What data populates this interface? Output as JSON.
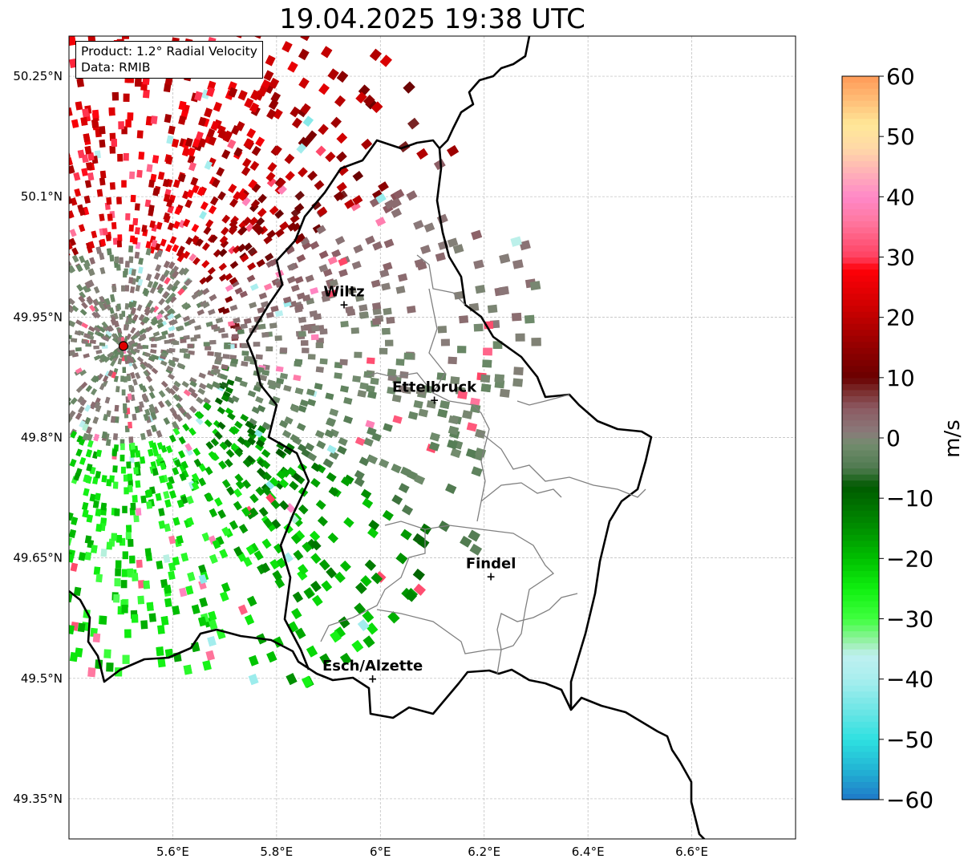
{
  "title": "19.04.2025 19:38 UTC",
  "info": {
    "product": "Product: 1.2° Radial Velocity",
    "data_source": "Data: RMIB"
  },
  "map": {
    "lon_range": [
      5.4,
      6.8
    ],
    "lat_range": [
      49.3,
      50.3
    ],
    "grid": true,
    "lat_ticks": [
      {
        "value": 50.25,
        "label": "50.25°N"
      },
      {
        "value": 50.1,
        "label": "50.1°N"
      },
      {
        "value": 49.95,
        "label": "49.95°N"
      },
      {
        "value": 49.8,
        "label": "49.8°N"
      },
      {
        "value": 49.65,
        "label": "49.65°N"
      },
      {
        "value": 49.5,
        "label": "49.5°N"
      },
      {
        "value": 49.35,
        "label": "49.35°N"
      }
    ],
    "lon_ticks": [
      {
        "value": 5.6,
        "label": "5.6°E"
      },
      {
        "value": 5.8,
        "label": "5.8°E"
      },
      {
        "value": 6.0,
        "label": "6°E"
      },
      {
        "value": 6.2,
        "label": "6.2°E"
      },
      {
        "value": 6.4,
        "label": "6.4°E"
      },
      {
        "value": 6.6,
        "label": "6.6°E"
      }
    ],
    "radar_site": {
      "lon": 5.505,
      "lat": 49.914
    },
    "cities": [
      {
        "name": "Wiltz",
        "lon": 5.93,
        "lat": 49.966
      },
      {
        "name": "Ettelbruck",
        "lon": 6.104,
        "lat": 49.847
      },
      {
        "name": "Findel",
        "lon": 6.213,
        "lat": 49.627
      },
      {
        "name": "Esch/Alzette",
        "lon": 5.985,
        "lat": 49.5
      }
    ]
  },
  "colorbar": {
    "label": "m/s",
    "min": -60,
    "max": 60,
    "ticks": [
      {
        "value": 60,
        "label": "60"
      },
      {
        "value": 50,
        "label": "50"
      },
      {
        "value": 40,
        "label": "40"
      },
      {
        "value": 30,
        "label": "30"
      },
      {
        "value": 20,
        "label": "20"
      },
      {
        "value": 10,
        "label": "10"
      },
      {
        "value": 0,
        "label": "0"
      },
      {
        "value": -10,
        "label": "−10"
      },
      {
        "value": -20,
        "label": "−20"
      },
      {
        "value": -30,
        "label": "−30"
      },
      {
        "value": -40,
        "label": "−40"
      },
      {
        "value": -50,
        "label": "−50"
      },
      {
        "value": -60,
        "label": "−60"
      }
    ],
    "stops": [
      {
        "value": -60,
        "color": "#1f78c8"
      },
      {
        "value": -55,
        "color": "#22b4d4"
      },
      {
        "value": -50,
        "color": "#2ee0e0"
      },
      {
        "value": -45,
        "color": "#6ee6e6"
      },
      {
        "value": -40,
        "color": "#a8eeee"
      },
      {
        "value": -36,
        "color": "#bff0f0"
      },
      {
        "value": -34,
        "color": "#9ef0b0"
      },
      {
        "value": -30,
        "color": "#40ff40"
      },
      {
        "value": -25,
        "color": "#10f010"
      },
      {
        "value": -20,
        "color": "#00c000"
      },
      {
        "value": -15,
        "color": "#009000"
      },
      {
        "value": -8,
        "color": "#005a00"
      },
      {
        "value": -5,
        "color": "#4f7a4f"
      },
      {
        "value": -1,
        "color": "#728c6e"
      },
      {
        "value": 1,
        "color": "#8a7a7a"
      },
      {
        "value": 5,
        "color": "#8c5a62"
      },
      {
        "value": 8,
        "color": "#7a2a2a"
      },
      {
        "value": 10,
        "color": "#6a0000"
      },
      {
        "value": 16,
        "color": "#9a0000"
      },
      {
        "value": 22,
        "color": "#d00000"
      },
      {
        "value": 28,
        "color": "#ff0008"
      },
      {
        "value": 30,
        "color": "#ff4060"
      },
      {
        "value": 36,
        "color": "#ff78a0"
      },
      {
        "value": 40,
        "color": "#ff88c8"
      },
      {
        "value": 44,
        "color": "#ffb0b8"
      },
      {
        "value": 48,
        "color": "#ffd8a8"
      },
      {
        "value": 52,
        "color": "#ffe898"
      },
      {
        "value": 56,
        "color": "#ffbe78"
      },
      {
        "value": 60,
        "color": "#ff9a58"
      }
    ]
  }
}
